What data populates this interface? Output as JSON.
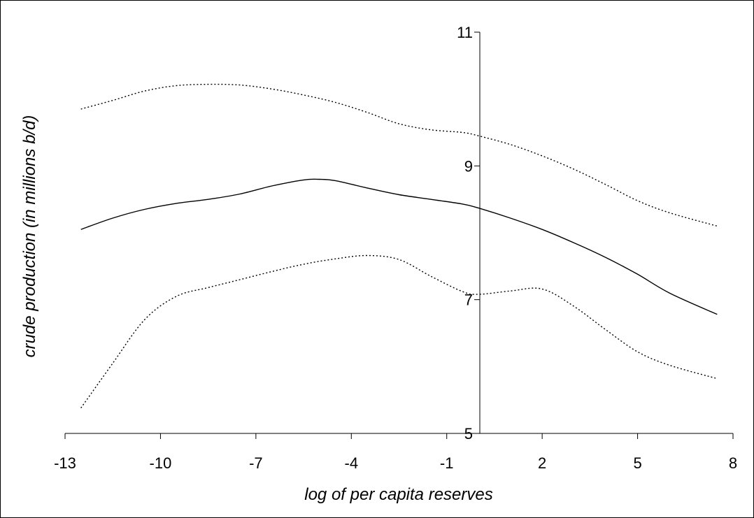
{
  "chart_data": {
    "type": "line",
    "title": "",
    "xlabel": "log of per capita reserves",
    "ylabel": "crude production (in millions b/d)",
    "xlim": [
      -13,
      8
    ],
    "ylim": [
      5,
      11
    ],
    "x_ticks": [
      -13,
      -10,
      -7,
      -4,
      -1,
      2,
      5,
      8
    ],
    "y_ticks": [
      5,
      7,
      9,
      11
    ],
    "x_tick_labels": [
      "-13",
      "-10",
      "-7",
      "-4",
      "-1",
      "2",
      "5",
      "8"
    ],
    "y_tick_labels": [
      "5",
      "7",
      "9",
      "11"
    ],
    "grid": false,
    "legend": "none",
    "series": [
      {
        "style": "solid",
        "color": "#000000",
        "points": [
          [
            -12.5,
            8.05
          ],
          [
            -11.5,
            8.22
          ],
          [
            -10.5,
            8.35
          ],
          [
            -9.5,
            8.44
          ],
          [
            -8.5,
            8.5
          ],
          [
            -7.5,
            8.58
          ],
          [
            -6.5,
            8.7
          ],
          [
            -5.5,
            8.79
          ],
          [
            -5.0,
            8.8
          ],
          [
            -4.5,
            8.78
          ],
          [
            -3.5,
            8.67
          ],
          [
            -2.5,
            8.57
          ],
          [
            -1.5,
            8.5
          ],
          [
            -0.5,
            8.43
          ],
          [
            0.0,
            8.37
          ],
          [
            1.0,
            8.22
          ],
          [
            2.0,
            8.05
          ],
          [
            3.0,
            7.85
          ],
          [
            4.0,
            7.63
          ],
          [
            5.0,
            7.38
          ],
          [
            6.0,
            7.1
          ],
          [
            7.5,
            6.78
          ]
        ]
      },
      {
        "style": "dotted",
        "color": "#000000",
        "points": [
          [
            -12.5,
            9.85
          ],
          [
            -11.5,
            9.98
          ],
          [
            -10.5,
            10.12
          ],
          [
            -9.5,
            10.2
          ],
          [
            -8.5,
            10.22
          ],
          [
            -7.5,
            10.21
          ],
          [
            -6.5,
            10.15
          ],
          [
            -5.5,
            10.06
          ],
          [
            -4.5,
            9.95
          ],
          [
            -3.5,
            9.8
          ],
          [
            -2.5,
            9.63
          ],
          [
            -1.5,
            9.54
          ],
          [
            -0.5,
            9.5
          ],
          [
            0.0,
            9.45
          ],
          [
            1.0,
            9.32
          ],
          [
            2.0,
            9.15
          ],
          [
            3.0,
            8.95
          ],
          [
            4.0,
            8.72
          ],
          [
            5.0,
            8.48
          ],
          [
            6.0,
            8.3
          ],
          [
            7.5,
            8.1
          ]
        ]
      },
      {
        "style": "dotted",
        "color": "#000000",
        "points": [
          [
            -12.5,
            5.38
          ],
          [
            -11.5,
            6.05
          ],
          [
            -10.5,
            6.7
          ],
          [
            -9.5,
            7.05
          ],
          [
            -8.5,
            7.18
          ],
          [
            -7.5,
            7.3
          ],
          [
            -6.5,
            7.42
          ],
          [
            -5.5,
            7.53
          ],
          [
            -4.5,
            7.61
          ],
          [
            -3.5,
            7.66
          ],
          [
            -2.5,
            7.6
          ],
          [
            -1.5,
            7.35
          ],
          [
            -0.5,
            7.12
          ],
          [
            0.0,
            7.08
          ],
          [
            1.0,
            7.13
          ],
          [
            2.0,
            7.16
          ],
          [
            3.0,
            6.9
          ],
          [
            4.0,
            6.55
          ],
          [
            5.0,
            6.22
          ],
          [
            6.0,
            6.02
          ],
          [
            7.5,
            5.82
          ]
        ]
      }
    ]
  }
}
